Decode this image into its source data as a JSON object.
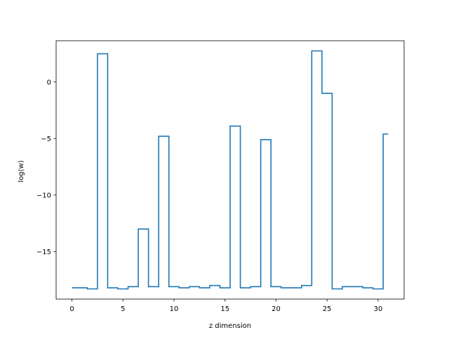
{
  "chart_data": {
    "type": "line",
    "drawstyle": "steps-mid",
    "title": "",
    "xlabel": "z dimension",
    "ylabel": "log(w)",
    "xlim": [
      -1.55,
      32.55
    ],
    "ylim": [
      -19.2,
      3.65
    ],
    "xticks": [
      0,
      5,
      10,
      15,
      20,
      25,
      30
    ],
    "yticks": [
      -15,
      -10,
      -5,
      0
    ],
    "grid": false,
    "legend": "none",
    "series": [
      {
        "color": "#1f77b4",
        "x": [
          0,
          1,
          2,
          3,
          4,
          5,
          6,
          7,
          8,
          9,
          10,
          11,
          12,
          13,
          14,
          15,
          16,
          17,
          18,
          19,
          20,
          21,
          22,
          23,
          24,
          25,
          26,
          27,
          28,
          29,
          30,
          31
        ],
        "values": [
          -18.2,
          -18.2,
          -18.3,
          2.5,
          -18.2,
          -18.3,
          -18.1,
          -13.0,
          -18.1,
          -4.8,
          -18.1,
          -18.2,
          -18.1,
          -18.2,
          -18.0,
          -18.2,
          -3.9,
          -18.2,
          -18.1,
          -5.1,
          -18.1,
          -18.2,
          -18.2,
          -18.0,
          2.75,
          -1.0,
          -18.3,
          -18.1,
          -18.1,
          -18.2,
          -18.3,
          -4.6
        ]
      }
    ]
  }
}
